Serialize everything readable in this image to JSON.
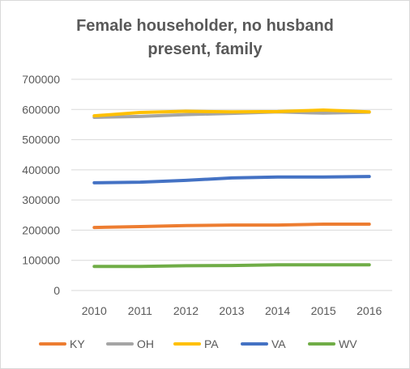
{
  "chart_data": {
    "type": "line",
    "title": "Female householder, no husband present, family",
    "title_lines": [
      "Female householder, no husband",
      "present, family"
    ],
    "x": [
      "2010",
      "2011",
      "2012",
      "2013",
      "2014",
      "2015",
      "2016"
    ],
    "y_ticks": [
      "0",
      "100000",
      "200000",
      "300000",
      "400000",
      "500000",
      "600000",
      "700000"
    ],
    "ylim": [
      0,
      700000
    ],
    "grid": true,
    "legend_position": "bottom",
    "series": [
      {
        "name": "KY",
        "color": "#ed7d31",
        "values": [
          209000,
          212000,
          215000,
          217000,
          217000,
          220000,
          220000
        ]
      },
      {
        "name": "OH",
        "color": "#a5a5a5",
        "values": [
          574000,
          577000,
          583000,
          587000,
          592000,
          588000,
          591000
        ]
      },
      {
        "name": "PA",
        "color": "#ffc000",
        "values": [
          579000,
          590000,
          594000,
          592000,
          593000,
          598000,
          592000
        ]
      },
      {
        "name": "VA",
        "color": "#4472c4",
        "values": [
          357000,
          359000,
          365000,
          373000,
          376000,
          376000,
          378000
        ]
      },
      {
        "name": "WV",
        "color": "#70ad47",
        "values": [
          80000,
          80000,
          82000,
          83000,
          85000,
          85000,
          85000
        ]
      }
    ]
  }
}
